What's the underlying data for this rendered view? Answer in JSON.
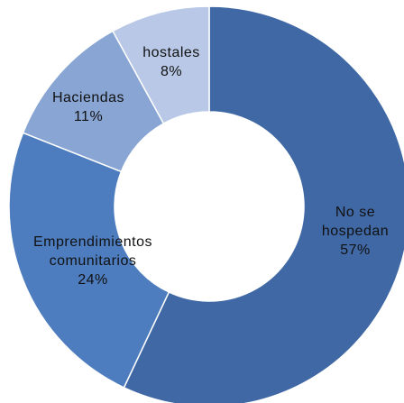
{
  "chart_data": {
    "type": "donut",
    "categories": [
      "No se hospedan",
      "Emprendimientos comunitarios",
      "Haciendas",
      "hostales"
    ],
    "values": [
      57,
      24,
      11,
      8
    ],
    "value_labels": [
      "57%",
      "24%",
      "11%",
      "8%"
    ],
    "colors": [
      "#3f68a5",
      "#4d7dbf",
      "#88a5d3",
      "#b8c8e6"
    ]
  }
}
